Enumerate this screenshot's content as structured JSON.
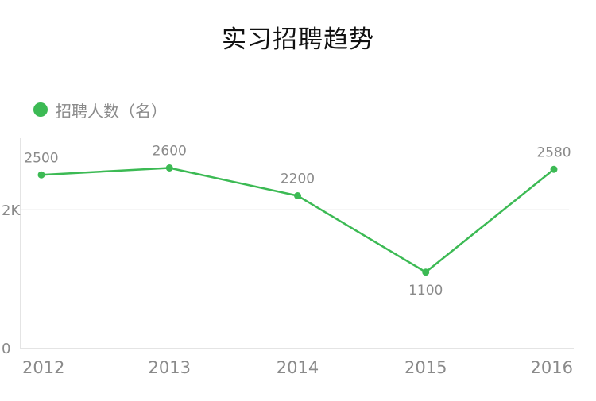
{
  "header": {
    "title": "实习招聘趋势"
  },
  "colors": {
    "series": "#3cba54",
    "axis": "#c8c8c8",
    "grid": "#eeeeee",
    "label": "#8a8a8a"
  },
  "chart_data": {
    "type": "line",
    "title": "实习招聘趋势",
    "categories": [
      "2012",
      "2013",
      "2014",
      "2015",
      "2016"
    ],
    "series": [
      {
        "name": "招聘人数（名）",
        "values": [
          2500,
          2600,
          2200,
          1100,
          2580
        ]
      }
    ],
    "data_labels": [
      "2500",
      "2600",
      "2200",
      "1100",
      "2580"
    ],
    "y_ticks": [
      {
        "value": 0,
        "label": "0"
      },
      {
        "value": 2000,
        "label": "2K"
      }
    ],
    "ylim": [
      0,
      3000
    ],
    "grid": true,
    "legend_position": "top-left",
    "xlabel": "",
    "ylabel": ""
  }
}
